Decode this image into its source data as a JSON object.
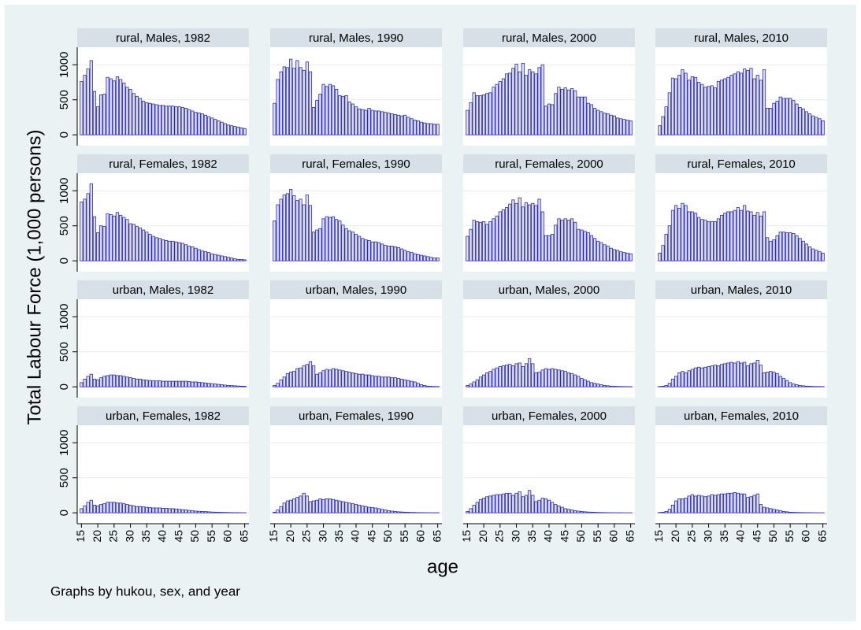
{
  "ylabel": "Total Labour Force (1,000 persons)",
  "xlabel": "age",
  "note": "Graphs by hukou, sex, and year",
  "chart_data": [
    {
      "type": "bar",
      "title": "rural, Males, 1982",
      "values": [
        760,
        850,
        940,
        1060,
        620,
        400,
        570,
        580,
        820,
        800,
        770,
        830,
        790,
        740,
        680,
        650,
        590,
        550,
        520,
        480,
        460,
        450,
        440,
        430,
        420,
        420,
        410,
        410,
        410,
        400,
        400,
        390,
        380,
        360,
        340,
        320,
        310,
        300,
        280,
        260,
        240,
        220,
        200,
        180,
        160,
        140,
        130,
        120,
        110,
        100,
        90
      ]
    },
    {
      "type": "bar",
      "title": "rural, Males, 1990",
      "values": [
        450,
        790,
        900,
        970,
        960,
        1080,
        950,
        1060,
        960,
        920,
        1040,
        900,
        390,
        490,
        580,
        720,
        690,
        720,
        700,
        650,
        560,
        550,
        560,
        470,
        440,
        400,
        370,
        360,
        350,
        380,
        350,
        340,
        340,
        330,
        320,
        310,
        300,
        290,
        280,
        270,
        280,
        250,
        230,
        210,
        200,
        180,
        170,
        160,
        160,
        150,
        150
      ]
    },
    {
      "type": "bar",
      "title": "rural, Males, 2000",
      "values": [
        350,
        460,
        600,
        560,
        560,
        570,
        590,
        600,
        680,
        720,
        760,
        800,
        870,
        880,
        950,
        1010,
        900,
        1020,
        850,
        930,
        900,
        870,
        960,
        1000,
        410,
        440,
        430,
        590,
        680,
        650,
        670,
        640,
        660,
        630,
        540,
        540,
        540,
        450,
        430,
        380,
        350,
        330,
        310,
        300,
        280,
        270,
        240,
        230,
        220,
        210,
        200
      ]
    },
    {
      "type": "bar",
      "title": "rural, Males, 2010",
      "values": [
        130,
        260,
        400,
        600,
        810,
        800,
        850,
        930,
        880,
        780,
        830,
        820,
        750,
        720,
        680,
        690,
        700,
        670,
        760,
        780,
        800,
        820,
        850,
        870,
        900,
        880,
        940,
        920,
        950,
        800,
        850,
        780,
        930,
        380,
        380,
        450,
        480,
        540,
        520,
        520,
        520,
        490,
        440,
        390,
        370,
        330,
        300,
        270,
        250,
        230,
        200
      ]
    },
    {
      "type": "bar",
      "title": "rural, Females, 1982",
      "values": [
        840,
        880,
        960,
        1100,
        630,
        400,
        500,
        490,
        670,
        660,
        640,
        690,
        650,
        620,
        590,
        530,
        520,
        490,
        470,
        440,
        410,
        380,
        350,
        330,
        320,
        300,
        290,
        280,
        280,
        270,
        260,
        250,
        230,
        210,
        200,
        180,
        160,
        140,
        130,
        120,
        100,
        90,
        80,
        70,
        60,
        50,
        40,
        30,
        20,
        20,
        15
      ]
    },
    {
      "type": "bar",
      "title": "rural, Females, 1990",
      "values": [
        570,
        800,
        880,
        940,
        960,
        1020,
        930,
        860,
        880,
        800,
        940,
        790,
        410,
        440,
        460,
        600,
        630,
        620,
        630,
        590,
        570,
        510,
        460,
        430,
        410,
        380,
        350,
        320,
        300,
        290,
        270,
        270,
        260,
        240,
        220,
        210,
        210,
        200,
        190,
        170,
        150,
        130,
        120,
        100,
        90,
        80,
        70,
        60,
        50,
        40,
        40
      ]
    },
    {
      "type": "bar",
      "title": "rural, Females, 2000",
      "values": [
        350,
        450,
        580,
        560,
        550,
        560,
        520,
        560,
        600,
        640,
        700,
        730,
        760,
        810,
        870,
        820,
        900,
        770,
        830,
        800,
        820,
        790,
        880,
        700,
        360,
        360,
        380,
        510,
        600,
        580,
        600,
        580,
        600,
        550,
        450,
        440,
        420,
        400,
        360,
        320,
        280,
        260,
        230,
        210,
        180,
        160,
        150,
        130,
        120,
        110,
        100
      ]
    },
    {
      "type": "bar",
      "title": "rural, Females, 2010",
      "values": [
        110,
        220,
        380,
        500,
        720,
        790,
        750,
        820,
        790,
        700,
        700,
        680,
        620,
        590,
        580,
        560,
        560,
        560,
        600,
        650,
        680,
        700,
        700,
        720,
        760,
        720,
        790,
        710,
        700,
        650,
        690,
        640,
        700,
        330,
        280,
        300,
        360,
        410,
        410,
        400,
        400,
        390,
        360,
        320,
        280,
        240,
        200,
        170,
        150,
        130,
        110
      ]
    },
    {
      "type": "bar",
      "title": "urban, Males, 1982",
      "values": [
        60,
        110,
        150,
        180,
        110,
        100,
        130,
        150,
        160,
        170,
        170,
        160,
        160,
        150,
        140,
        130,
        120,
        110,
        110,
        100,
        95,
        90,
        85,
        85,
        85,
        80,
        80,
        80,
        80,
        80,
        80,
        80,
        80,
        75,
        70,
        70,
        65,
        60,
        55,
        50,
        45,
        40,
        35,
        30,
        25,
        20,
        18,
        15,
        12,
        10,
        8
      ]
    },
    {
      "type": "bar",
      "title": "urban, Males, 1990",
      "values": [
        20,
        50,
        100,
        140,
        190,
        210,
        220,
        260,
        270,
        300,
        320,
        360,
        300,
        180,
        200,
        230,
        250,
        240,
        260,
        250,
        240,
        230,
        220,
        210,
        200,
        190,
        180,
        180,
        170,
        170,
        160,
        150,
        150,
        140,
        140,
        140,
        130,
        130,
        120,
        110,
        100,
        90,
        80,
        70,
        50,
        30,
        20,
        10,
        8,
        5,
        5
      ]
    },
    {
      "type": "bar",
      "title": "urban, Males, 2000",
      "values": [
        20,
        40,
        70,
        100,
        140,
        170,
        200,
        220,
        250,
        270,
        290,
        300,
        310,
        320,
        300,
        330,
        340,
        290,
        330,
        400,
        330,
        200,
        210,
        240,
        260,
        250,
        260,
        250,
        240,
        230,
        220,
        200,
        190,
        170,
        150,
        120,
        100,
        80,
        60,
        50,
        40,
        30,
        20,
        15,
        10,
        8,
        6,
        5,
        4,
        3,
        3
      ]
    },
    {
      "type": "bar",
      "title": "urban, Males, 2010",
      "values": [
        5,
        10,
        20,
        50,
        110,
        150,
        200,
        220,
        200,
        230,
        250,
        270,
        280,
        270,
        280,
        290,
        300,
        310,
        300,
        320,
        330,
        340,
        350,
        340,
        360,
        340,
        350,
        300,
        330,
        340,
        380,
        310,
        200,
        210,
        220,
        210,
        190,
        150,
        120,
        90,
        60,
        40,
        30,
        20,
        15,
        10,
        8,
        6,
        5,
        4,
        3
      ]
    },
    {
      "type": "bar",
      "title": "urban, Females, 1982",
      "values": [
        60,
        100,
        150,
        180,
        110,
        100,
        120,
        130,
        150,
        150,
        150,
        140,
        140,
        130,
        120,
        110,
        100,
        90,
        90,
        85,
        80,
        75,
        70,
        70,
        70,
        65,
        65,
        60,
        60,
        55,
        50,
        45,
        40,
        35,
        30,
        25,
        22,
        20,
        18,
        15,
        12,
        10,
        8,
        7,
        6,
        5,
        4,
        3,
        3,
        2,
        2
      ]
    },
    {
      "type": "bar",
      "title": "urban, Females, 1990",
      "values": [
        10,
        40,
        90,
        140,
        170,
        180,
        200,
        220,
        240,
        280,
        240,
        160,
        170,
        180,
        200,
        190,
        200,
        200,
        190,
        180,
        170,
        160,
        150,
        140,
        130,
        120,
        110,
        100,
        90,
        80,
        75,
        70,
        60,
        50,
        40,
        30,
        25,
        20,
        15,
        12,
        10,
        8,
        6,
        5,
        4,
        3,
        3,
        2,
        2,
        2,
        2
      ]
    },
    {
      "type": "bar",
      "title": "urban, Females, 2000",
      "values": [
        20,
        60,
        110,
        150,
        190,
        210,
        230,
        240,
        250,
        260,
        260,
        270,
        280,
        280,
        250,
        280,
        300,
        230,
        250,
        320,
        250,
        160,
        180,
        210,
        200,
        180,
        150,
        120,
        100,
        80,
        60,
        50,
        40,
        30,
        25,
        20,
        15,
        12,
        10,
        8,
        6,
        5,
        4,
        3,
        3,
        2,
        2,
        2,
        1,
        1,
        1
      ]
    },
    {
      "type": "bar",
      "title": "urban, Females, 2010",
      "values": [
        5,
        10,
        20,
        50,
        110,
        170,
        200,
        200,
        210,
        240,
        260,
        240,
        250,
        240,
        230,
        240,
        260,
        250,
        260,
        270,
        270,
        280,
        280,
        290,
        280,
        270,
        270,
        220,
        230,
        250,
        270,
        120,
        80,
        70,
        60,
        50,
        40,
        30,
        20,
        15,
        10,
        8,
        6,
        5,
        4,
        3,
        3,
        2,
        2,
        1,
        1
      ]
    }
  ],
  "x": [
    15,
    16,
    17,
    18,
    19,
    20,
    21,
    22,
    23,
    24,
    25,
    26,
    27,
    28,
    29,
    30,
    31,
    32,
    33,
    34,
    35,
    36,
    37,
    38,
    39,
    40,
    41,
    42,
    43,
    44,
    45,
    46,
    47,
    48,
    49,
    50,
    51,
    52,
    53,
    54,
    55,
    56,
    57,
    58,
    59,
    60,
    61,
    62,
    63,
    64,
    65
  ],
  "xlim": [
    13.7,
    66.3
  ],
  "ylim": [
    -155,
    1250
  ],
  "xticks": [
    15,
    20,
    25,
    30,
    35,
    40,
    45,
    50,
    55,
    60,
    65
  ],
  "yticks": [
    0,
    500,
    1000
  ],
  "bar_fill": "#dcdcf7",
  "bar_stroke": "#2a2ab0",
  "grid": true
}
